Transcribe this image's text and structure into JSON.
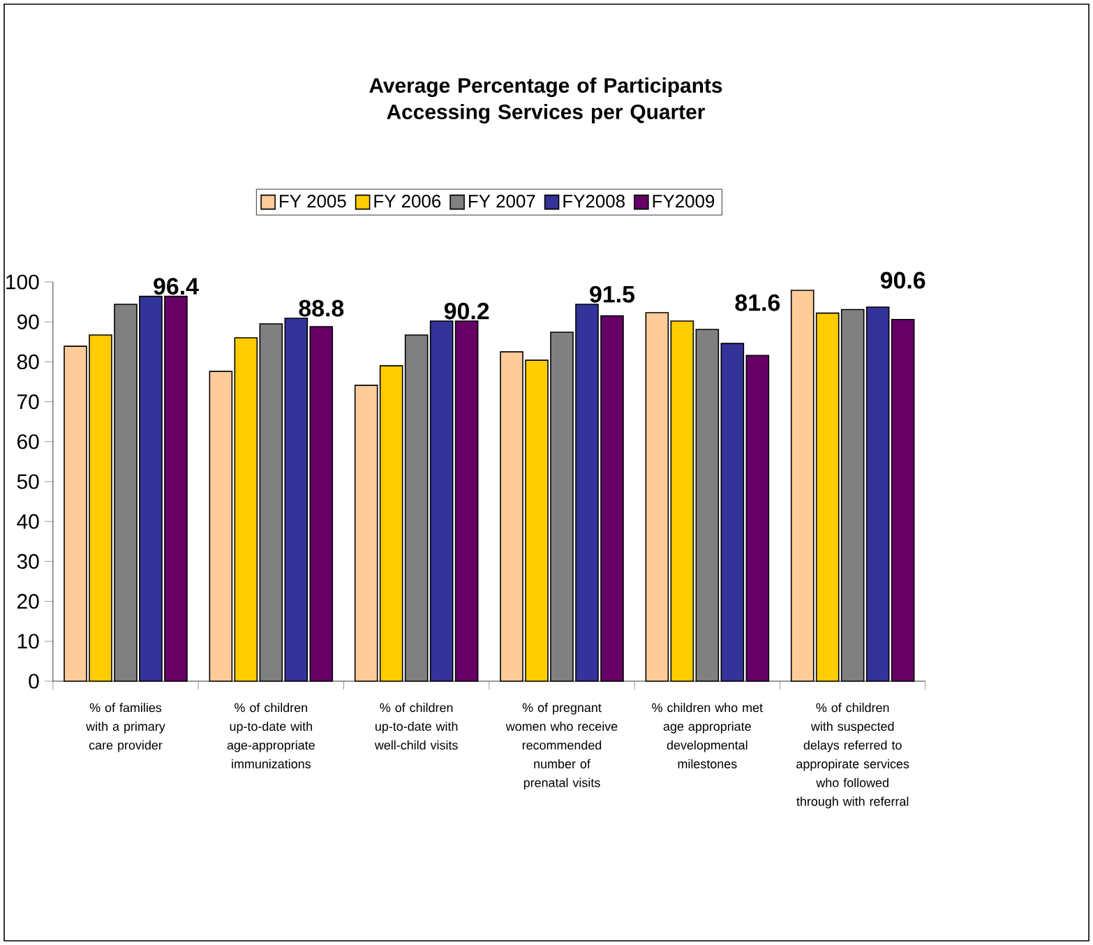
{
  "chart_data": {
    "type": "bar",
    "title": "Average Percentage of Participants Accessing Services per Quarter",
    "categories": [
      "% of families with a primary care provider",
      "% of children up-to-date with age-appropriate immunizations",
      "% of children up-to-date with well-child visits",
      "% of pregnant women who receive recommended number of prenatal visits",
      "% children who met age appropriate developmental milestones",
      "% of children with suspected delays referred to appropirate services who followed through with referral"
    ],
    "series": [
      {
        "name": "FY 2005",
        "color": "#ffcc99",
        "values": [
          83.9,
          77.6,
          74.1,
          82.5,
          92.3,
          97.9
        ]
      },
      {
        "name": "FY 2006",
        "color": "#ffcc00",
        "values": [
          86.7,
          86.0,
          79.0,
          80.4,
          90.2,
          92.2
        ]
      },
      {
        "name": "FY 2007",
        "color": "#808080",
        "values": [
          94.4,
          89.5,
          86.7,
          87.4,
          88.1,
          93.1
        ]
      },
      {
        "name": "FY2008",
        "color": "#333399",
        "values": [
          96.4,
          90.9,
          90.2,
          94.4,
          84.6,
          93.7
        ]
      },
      {
        "name": "FY2009",
        "color": "#660066",
        "values": [
          96.4,
          88.8,
          90.2,
          91.5,
          81.6,
          90.6
        ],
        "value_labels": [
          "96.4",
          "88.8",
          "90.2",
          "91.5",
          "81.6",
          "90.6"
        ]
      }
    ],
    "ylim": [
      0,
      100
    ],
    "yticks": [
      0,
      10,
      20,
      30,
      40,
      50,
      60,
      70,
      80,
      90,
      100
    ],
    "grid": false,
    "legend": "top"
  }
}
